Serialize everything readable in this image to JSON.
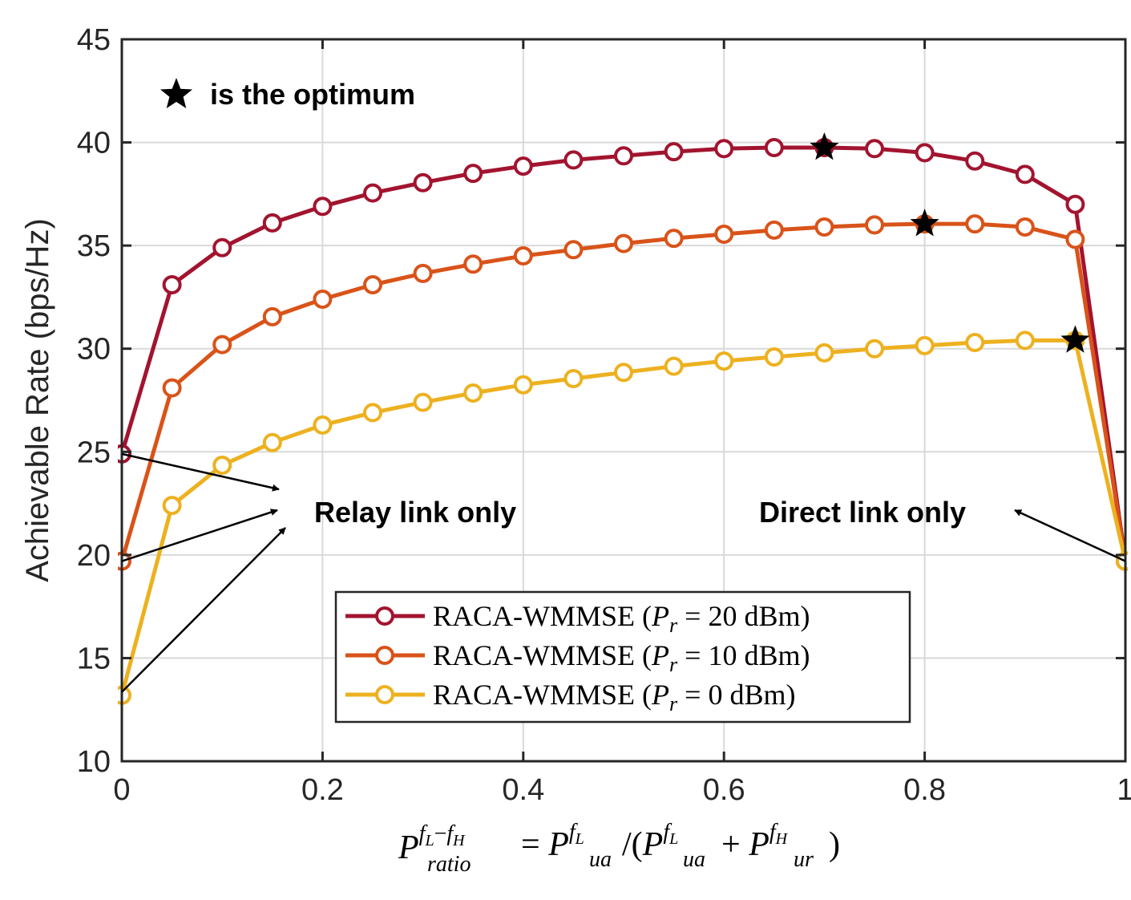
{
  "chart_data": {
    "type": "line",
    "x": [
      0,
      0.05,
      0.1,
      0.15,
      0.2,
      0.25,
      0.3,
      0.35,
      0.4,
      0.45,
      0.5,
      0.55,
      0.6,
      0.65,
      0.7,
      0.75,
      0.8,
      0.85,
      0.9,
      0.95,
      1
    ],
    "series": [
      {
        "name": "RACA-WMMSE (P_r = 20 dBm)",
        "legend_prefix": "RACA-WMMSE (",
        "legend_value": "= 20 dBm)",
        "color": "#A2142F",
        "values": [
          24.9,
          33.1,
          34.9,
          36.1,
          36.9,
          37.55,
          38.05,
          38.5,
          38.85,
          39.15,
          39.35,
          39.55,
          39.7,
          39.75,
          39.75,
          39.7,
          39.5,
          39.1,
          38.45,
          37.0,
          19.7
        ],
        "optimum_x": 0.7,
        "optimum_y": 39.75
      },
      {
        "name": "RACA-WMMSE (P_r = 10 dBm)",
        "legend_prefix": "RACA-WMMSE (",
        "legend_value": "= 10 dBm)",
        "color": "#D95319",
        "values": [
          19.7,
          28.1,
          30.2,
          31.55,
          32.4,
          33.1,
          33.65,
          34.1,
          34.5,
          34.8,
          35.1,
          35.35,
          35.55,
          35.75,
          35.9,
          36.0,
          36.05,
          36.05,
          35.9,
          35.3,
          19.7
        ],
        "optimum_x": 0.8,
        "optimum_y": 36.05
      },
      {
        "name": "RACA-WMMSE (P_r = 0 dBm)",
        "legend_prefix": "RACA-WMMSE (",
        "legend_value": "= 0 dBm)",
        "color": "#EDB120",
        "values": [
          13.2,
          22.4,
          24.35,
          25.45,
          26.3,
          26.9,
          27.4,
          27.85,
          28.25,
          28.55,
          28.85,
          29.15,
          29.4,
          29.6,
          29.8,
          30.0,
          30.15,
          30.3,
          30.4,
          30.4,
          19.7
        ],
        "optimum_x": 0.95,
        "optimum_y": 30.4
      }
    ],
    "xlim": [
      0,
      1
    ],
    "ylim": [
      10,
      45
    ],
    "xticks": [
      0,
      0.2,
      0.4,
      0.6,
      0.8,
      1
    ],
    "yticks": [
      10,
      15,
      20,
      25,
      30,
      35,
      40,
      45
    ],
    "xtick_labels": [
      "0",
      "0.2",
      "0.4",
      "0.6",
      "0.8",
      "1"
    ],
    "ytick_labels": [
      "10",
      "15",
      "20",
      "25",
      "30",
      "35",
      "40",
      "45"
    ],
    "ylabel": "Achievable Rate (bps/Hz)",
    "xlabel": "P_ratio^{f_L-f_H} = P_ua^{f_L} / (P_ua^{f_L} + P_ur^{f_H})",
    "grid": true,
    "legend_position": "bottom-center",
    "annotations": {
      "optimum_note": "is the optimum",
      "relay_label": "Relay link only",
      "direct_label": "Direct link only"
    }
  }
}
